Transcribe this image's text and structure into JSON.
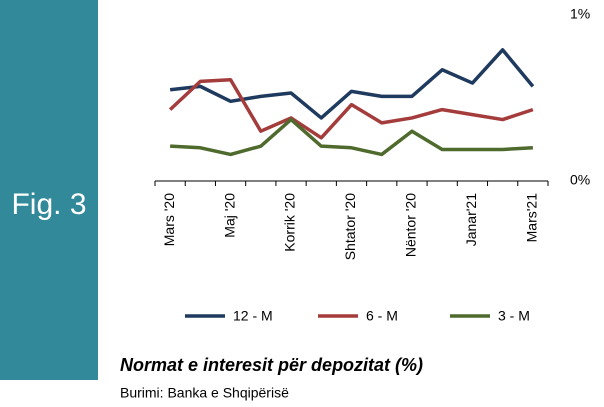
{
  "figure_label": "Fig. 3",
  "chart_data": {
    "type": "line",
    "title": "Normat e interesit për depozitat (%)",
    "source": "Burimi: Banka e Shqipërisë",
    "categories": [
      "Mars '20",
      null,
      "Maj '20",
      null,
      "Korrik '20",
      null,
      "Shtator '20",
      null,
      "Nëntor '20",
      null,
      "Janar'21",
      null,
      "Mars'21"
    ],
    "series": [
      {
        "name": "12 - M",
        "color": "#1f3a5f",
        "values": [
          0.55,
          0.57,
          0.48,
          0.51,
          0.53,
          0.38,
          0.54,
          0.51,
          0.51,
          0.67,
          0.59,
          0.79,
          0.57
        ]
      },
      {
        "name": "6 - M",
        "color": "#a43c3c",
        "values": [
          0.43,
          0.6,
          0.61,
          0.3,
          0.38,
          0.26,
          0.46,
          0.35,
          0.38,
          0.43,
          0.4,
          0.37,
          0.43
        ]
      },
      {
        "name": "3 - M",
        "color": "#4f6a2d",
        "values": [
          0.21,
          0.2,
          0.16,
          0.21,
          0.37,
          0.21,
          0.2,
          0.16,
          0.3,
          0.19,
          0.19,
          0.19,
          0.2
        ]
      }
    ],
    "ylim": [
      0,
      1
    ],
    "yticks": [
      {
        "value": 0,
        "label": "0%"
      },
      {
        "value": 1,
        "label": "1%"
      }
    ],
    "grid": false
  }
}
